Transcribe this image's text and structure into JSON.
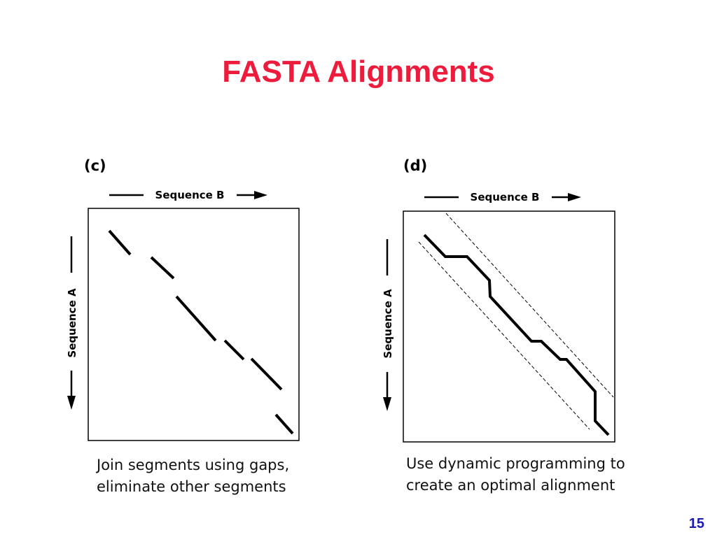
{
  "slide": {
    "title": "FASTA Alignments",
    "page_number": "15",
    "colors": {
      "title": "#ee1c3c",
      "page_number": "#1b1bb0",
      "ink": "#000000"
    }
  },
  "panels": [
    {
      "tag": "(c)",
      "x_label": "Sequence B",
      "y_label": "Sequence A",
      "caption_lines": [
        "Join segments using gaps,",
        "eliminate other segments"
      ]
    },
    {
      "tag": "(d)",
      "x_label": "Sequence B",
      "y_label": "Sequence A",
      "caption_lines": [
        "Use dynamic programming to",
        "create an optimal alignment"
      ]
    }
  ]
}
